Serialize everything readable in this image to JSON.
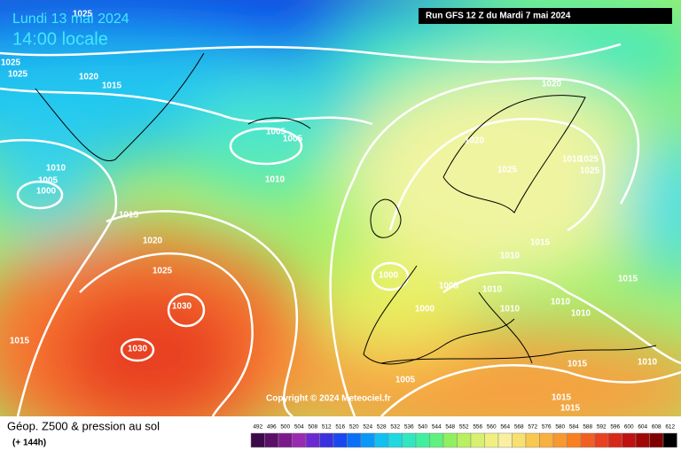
{
  "header": {
    "date": "Lundi 13 mai 2024",
    "time": "14:00 locale",
    "run": "Run GFS 12 Z du Mardi 7 mai 2024"
  },
  "copyright": "Copyright © 2024 Meteociel.fr",
  "footer": {
    "title": "Géop. Z500 & pression au sol",
    "lead": "(+ 144h)"
  },
  "isobar_labels": [
    "1025",
    "1025",
    "1025",
    "1020",
    "1015",
    "1005",
    "1005",
    "1010",
    "1005",
    "1000",
    "1010",
    "1015",
    "1020",
    "1025",
    "1030",
    "1030",
    "1015",
    "1020",
    "1020",
    "1025",
    "1010",
    "1025",
    "1025",
    "1015",
    "1010",
    "1000",
    "1005",
    "1010",
    "1010",
    "1000",
    "1010",
    "1010",
    "1015",
    "1015",
    "1010",
    "1005",
    "1015",
    "1015"
  ],
  "scale": {
    "values": [
      492,
      496,
      500,
      504,
      508,
      512,
      516,
      520,
      524,
      528,
      532,
      536,
      540,
      544,
      548,
      552,
      556,
      560,
      564,
      568,
      572,
      576,
      580,
      584,
      588,
      592,
      596,
      600,
      604,
      608,
      612
    ],
    "colors": [
      "#3c0a4a",
      "#5a1068",
      "#7a1a8c",
      "#9a2ab0",
      "#6a2ad0",
      "#3a30e0",
      "#1a48f0",
      "#0a70f8",
      "#0a98f8",
      "#10c0f0",
      "#20d8e0",
      "#30e8c0",
      "#40f0a0",
      "#60f080",
      "#90f060",
      "#b8f060",
      "#d8f070",
      "#f0f080",
      "#f8f0a0",
      "#f8e070",
      "#f8c850",
      "#f8b040",
      "#f89830",
      "#f88020",
      "#f06020",
      "#e84020",
      "#d82818",
      "#c01010",
      "#a00808",
      "#800000",
      "#000000"
    ]
  }
}
